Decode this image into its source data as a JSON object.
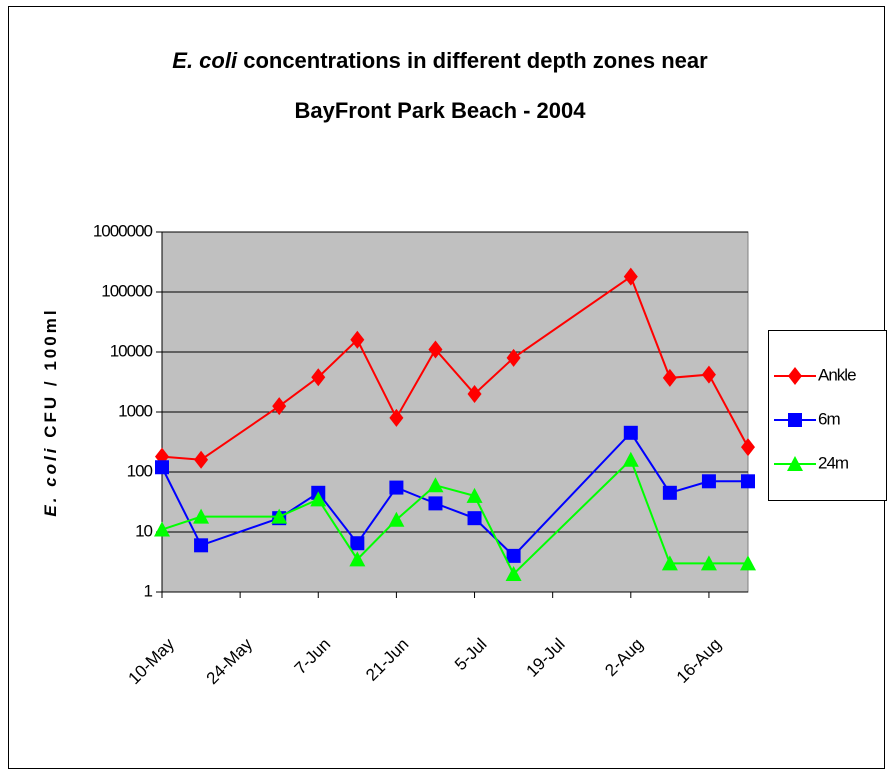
{
  "chart_data": {
    "type": "line",
    "title": {
      "italic": "E. coli",
      "lines": [
        "concentrations in different depth zones near",
        "BayFront Park Beach - 2004"
      ]
    },
    "ylabel": {
      "italic": "E. coli",
      "text": "CFU / 100ml"
    },
    "x": [
      "10-May",
      "17-May",
      "31-May",
      "7-Jun",
      "14-Jun",
      "21-Jun",
      "28-Jun",
      "5-Jul",
      "12-Jul",
      "2-Aug",
      "9-Aug",
      "16-Aug",
      "23-Aug"
    ],
    "series": [
      {
        "name": "Ankle",
        "color": "#ff0000",
        "marker": "diamond",
        "values": [
          180,
          160,
          1250,
          3800,
          16000,
          800,
          11000,
          2000,
          8000,
          180000,
          3700,
          4200,
          260
        ]
      },
      {
        "name": "6m",
        "color": "#0000ff",
        "marker": "square",
        "values": [
          120,
          6,
          17,
          45,
          6.5,
          55,
          30,
          17,
          4,
          450,
          45,
          70,
          70
        ]
      },
      {
        "name": "24m",
        "color": "#00ff00",
        "marker": "triangle",
        "values": [
          11,
          18,
          18,
          35,
          3.5,
          16,
          60,
          40,
          2,
          160,
          3,
          3,
          3
        ]
      }
    ],
    "xlim": [
      "10-May",
      "23-Aug"
    ],
    "xticks": [
      "10-May",
      "24-May",
      "7-Jun",
      "21-Jun",
      "5-Jul",
      "19-Jul",
      "2-Aug",
      "16-Aug"
    ],
    "ylim": [
      1,
      1000000
    ],
    "yticks": [
      1,
      10,
      100,
      1000,
      10000,
      100000,
      1000000
    ],
    "yscale": "log",
    "grid": true,
    "legend": "right",
    "plot_background": "#c0c0c0"
  }
}
